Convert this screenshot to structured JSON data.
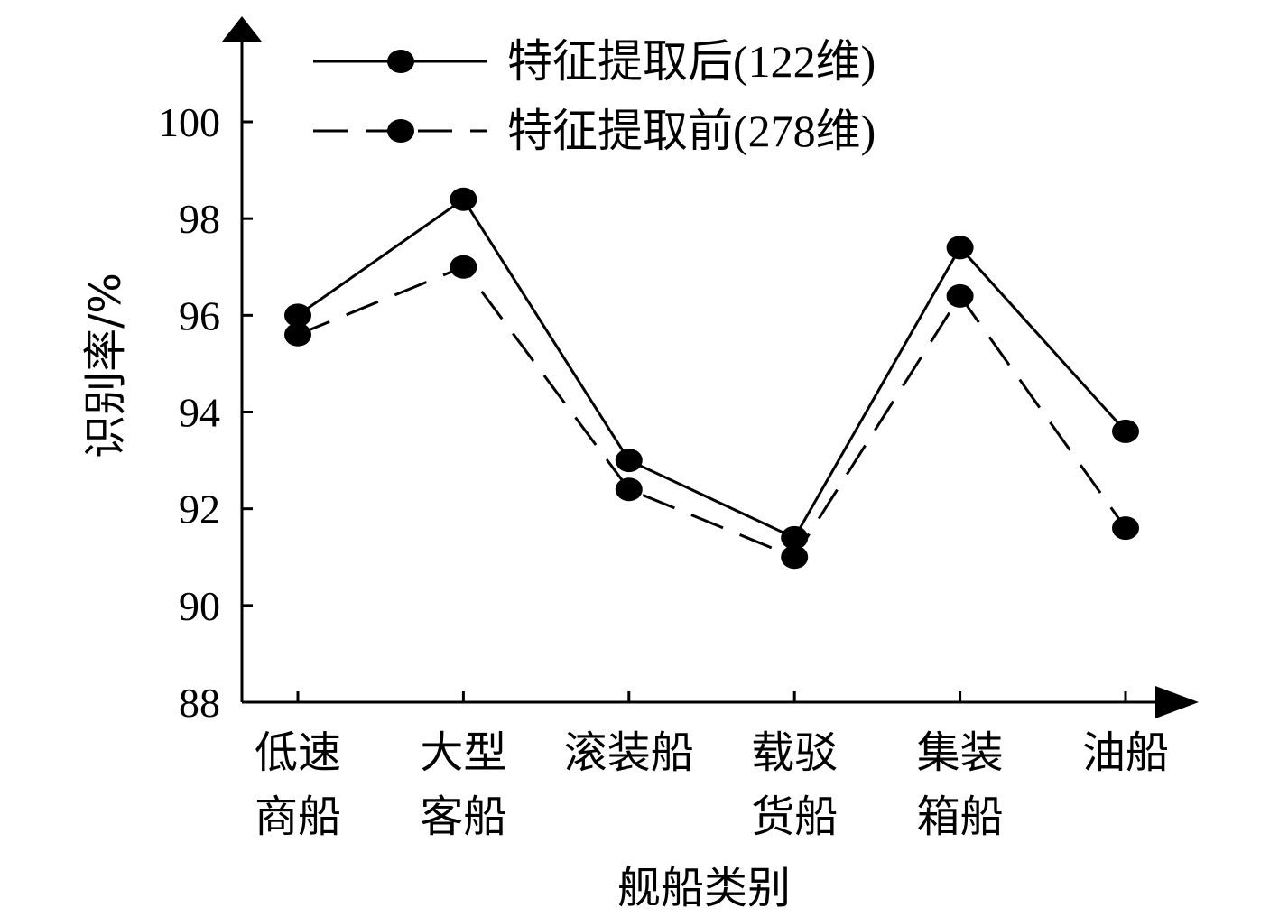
{
  "chart_data": {
    "type": "line",
    "xlabel": "舰船类别",
    "ylabel": "识别率/%",
    "ylim": [
      88,
      100
    ],
    "yticks": [
      88,
      90,
      92,
      94,
      96,
      98,
      100
    ],
    "categories": [
      [
        "低速",
        "商船"
      ],
      [
        "大型",
        "客船"
      ],
      [
        "滚装船"
      ],
      [
        "载驳",
        "货船"
      ],
      [
        "集装",
        "箱船"
      ],
      [
        "油船"
      ]
    ],
    "series": [
      {
        "name": "特征提取后(122维)",
        "style": "solid",
        "values": [
          96.0,
          98.4,
          93.0,
          91.4,
          97.4,
          93.6
        ]
      },
      {
        "name": "特征提取前(278维)",
        "style": "dashed",
        "values": [
          95.6,
          97.0,
          92.4,
          91.0,
          96.4,
          91.6
        ]
      }
    ],
    "legend_position": "top",
    "grid": false,
    "colors": {
      "line": "#000000",
      "marker": "#000000"
    }
  }
}
